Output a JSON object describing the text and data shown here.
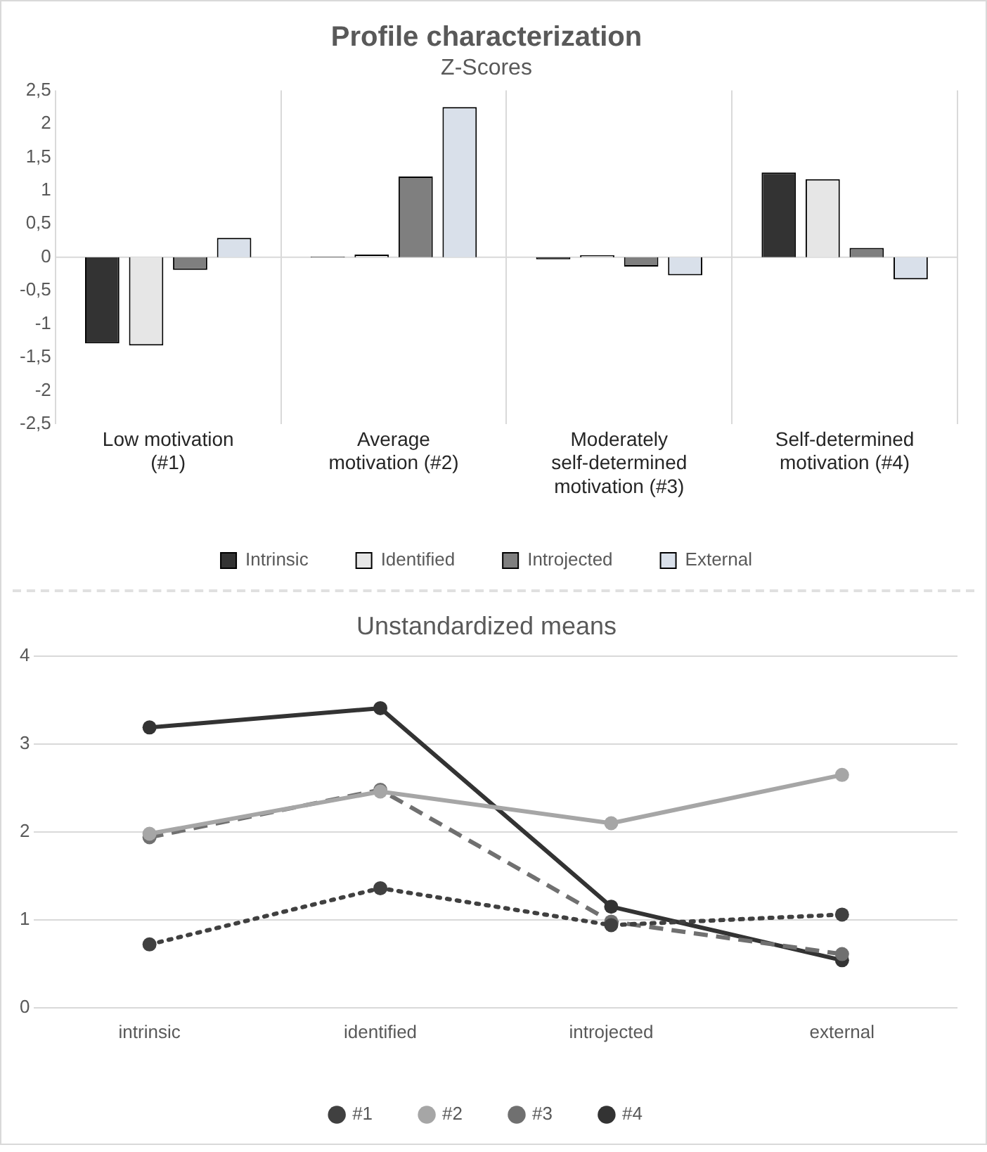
{
  "chart_data": [
    {
      "type": "bar",
      "title": "Profile characterization",
      "subtitle": "Z-Scores",
      "categories": [
        "Low motivation (#1)",
        "Average motivation (#2)",
        "Moderately self-determined motivation (#3)",
        "Self-determined motivation (#4)"
      ],
      "series": [
        {
          "name": "Intrinsic",
          "color": "#333333",
          "values": [
            -1.29,
            0.01,
            -0.03,
            1.27
          ]
        },
        {
          "name": "Identified",
          "color": "#e6e6e6",
          "values": [
            -1.32,
            0.04,
            0.03,
            1.17
          ]
        },
        {
          "name": "Introjected",
          "color": "#7f7f7f",
          "values": [
            -0.19,
            1.21,
            -0.14,
            0.14
          ]
        },
        {
          "name": "External",
          "color": "#d9e0ea",
          "values": [
            0.29,
            2.25,
            -0.27,
            -0.33
          ]
        }
      ],
      "ylim": [
        -2.5,
        2.5
      ],
      "yticks": [
        {
          "value": -2.5,
          "label": "-2,5"
        },
        -2,
        {
          "value": -1.5,
          "label": "-1,5"
        },
        -1,
        {
          "value": -0.5,
          "label": "-0,5"
        },
        0,
        {
          "value": 0.5,
          "label": "0,5"
        },
        1,
        {
          "value": 1.5,
          "label": "1,5"
        },
        2,
        {
          "value": 2.5,
          "label": "2,5"
        }
      ],
      "ref_lines": [
        {
          "axis": "y",
          "value": 0,
          "color": "#d9d9d9"
        }
      ],
      "grid": "x",
      "legend": "bottom"
    },
    {
      "type": "line",
      "title": "Unstandardized means",
      "categories": [
        "intrinsic",
        "identified",
        "introjected",
        "external"
      ],
      "series": [
        {
          "name": "#1",
          "color": "#404040",
          "line_style": "dotted",
          "values": [
            0.72,
            1.36,
            0.94,
            1.06
          ]
        },
        {
          "name": "#2",
          "color": "#a6a6a6",
          "line_style": "solid",
          "values": [
            1.98,
            2.46,
            2.1,
            2.65
          ]
        },
        {
          "name": "#3",
          "color": "#707070",
          "line_style": "dashed",
          "values": [
            1.94,
            2.48,
            0.98,
            0.61
          ]
        },
        {
          "name": "#4",
          "color": "#333333",
          "line_style": "solid",
          "values": [
            3.19,
            3.41,
            1.15,
            0.54
          ]
        }
      ],
      "ylim": [
        0,
        4
      ],
      "yticks": [
        0,
        1,
        2,
        3,
        4
      ],
      "grid": "y",
      "legend": "bottom",
      "marker": "circle"
    }
  ]
}
